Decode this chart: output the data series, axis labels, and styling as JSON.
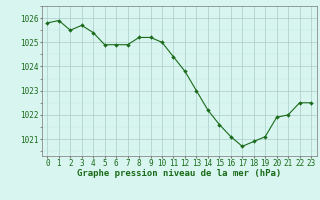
{
  "hours": [
    0,
    1,
    2,
    3,
    4,
    5,
    6,
    7,
    8,
    9,
    10,
    11,
    12,
    13,
    14,
    15,
    16,
    17,
    18,
    19,
    20,
    21,
    22,
    23
  ],
  "pressure": [
    1025.8,
    1025.9,
    1025.5,
    1025.7,
    1025.4,
    1024.9,
    1024.9,
    1024.9,
    1025.2,
    1025.2,
    1025.0,
    1024.4,
    1023.8,
    1023.0,
    1022.2,
    1021.6,
    1021.1,
    1020.7,
    1020.9,
    1021.1,
    1021.9,
    1022.0,
    1022.5,
    1022.5
  ],
  "line_color": "#1a6b1a",
  "marker": "D",
  "markersize": 2.0,
  "linewidth": 0.8,
  "bg_color": "#d8f5f0",
  "grid_color_major": "#aaccc8",
  "grid_color_minor": "#c4e8e4",
  "ylabel_ticks": [
    1021,
    1022,
    1023,
    1024,
    1025,
    1026
  ],
  "ylim": [
    1020.3,
    1026.5
  ],
  "xlim": [
    -0.5,
    23.5
  ],
  "xlabel": "Graphe pression niveau de la mer (hPa)",
  "xlabel_color": "#1a6b1a",
  "xlabel_fontsize": 6.5,
  "tick_fontsize": 5.5,
  "tick_color": "#1a6b1a",
  "spine_color": "#777777"
}
